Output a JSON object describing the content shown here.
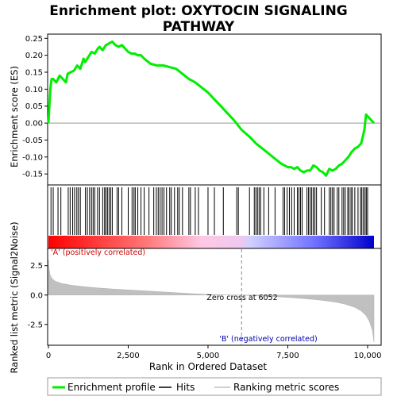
{
  "chart_data": [
    {
      "type": "line",
      "title": "Enrichment plot: OXYTOCIN SIGNALING PATHWAY",
      "title_lines": [
        "Enrichment plot: OXYTOCIN SIGNALING",
        "PATHWAY"
      ],
      "ylabel": "Enrichment score (ES)",
      "ylim": [
        -0.18,
        0.26
      ],
      "xlim": [
        0,
        10250
      ],
      "yticks": [
        -0.15,
        -0.1,
        -0.05,
        0.0,
        0.05,
        0.1,
        0.15,
        0.2,
        0.25
      ],
      "ytick_labels": [
        "-0.15",
        "-0.10",
        "-0.05",
        "0.00",
        "0.05",
        "0.10",
        "0.15",
        "0.20",
        "0.25"
      ],
      "line_color": "#00ee00",
      "x": [
        0,
        30,
        60,
        100,
        150,
        250,
        350,
        450,
        550,
        600,
        700,
        800,
        900,
        1000,
        1100,
        1150,
        1250,
        1350,
        1450,
        1550,
        1600,
        1700,
        1800,
        1900,
        2000,
        2100,
        2200,
        2300,
        2400,
        2500,
        2600,
        2700,
        2800,
        2900,
        3000,
        3200,
        3400,
        3600,
        3800,
        4000,
        4200,
        4400,
        4600,
        4800,
        5000,
        5200,
        5400,
        5600,
        5800,
        6052,
        6300,
        6500,
        6700,
        6900,
        7100,
        7300,
        7400,
        7500,
        7600,
        7700,
        7800,
        7900,
        8000,
        8100,
        8200,
        8300,
        8400,
        8500,
        8600,
        8700,
        8800,
        8900,
        9000,
        9100,
        9200,
        9300,
        9400,
        9500,
        9600,
        9700,
        9800,
        9850,
        9900,
        9950,
        10000,
        10100,
        10200
      ],
      "y": [
        0.0,
        0.05,
        0.1,
        0.13,
        0.13,
        0.12,
        0.14,
        0.13,
        0.12,
        0.145,
        0.15,
        0.155,
        0.17,
        0.16,
        0.19,
        0.18,
        0.195,
        0.21,
        0.205,
        0.22,
        0.225,
        0.215,
        0.23,
        0.235,
        0.24,
        0.23,
        0.225,
        0.23,
        0.22,
        0.21,
        0.205,
        0.205,
        0.2,
        0.2,
        0.19,
        0.175,
        0.17,
        0.17,
        0.165,
        0.16,
        0.145,
        0.13,
        0.12,
        0.105,
        0.09,
        0.07,
        0.05,
        0.03,
        0.01,
        -0.02,
        -0.04,
        -0.06,
        -0.075,
        -0.09,
        -0.105,
        -0.12,
        -0.125,
        -0.13,
        -0.13,
        -0.135,
        -0.13,
        -0.14,
        -0.145,
        -0.14,
        -0.14,
        -0.125,
        -0.13,
        -0.14,
        -0.145,
        -0.155,
        -0.135,
        -0.14,
        -0.135,
        -0.125,
        -0.12,
        -0.11,
        -0.1,
        -0.085,
        -0.075,
        -0.07,
        -0.06,
        -0.04,
        -0.02,
        0.025,
        0.02,
        0.01,
        0.0
      ]
    },
    {
      "type": "scatter",
      "series": [
        {
          "name": "Hits",
          "x": [
            80,
            150,
            300,
            390,
            620,
            680,
            760,
            820,
            890,
            940,
            1000,
            1160,
            1220,
            1290,
            1350,
            1400,
            1450,
            1540,
            1600,
            1700,
            1760,
            1800,
            1850,
            1900,
            1950,
            2000,
            2150,
            2200,
            2300,
            2500,
            2620,
            2680,
            2720,
            2800,
            2900,
            3000,
            3150,
            3300,
            3380,
            3440,
            3500,
            3560,
            3620,
            3700,
            3800,
            3850,
            3950,
            4050,
            4100,
            4200,
            4400,
            4450,
            4600,
            4700,
            5000,
            5200,
            5480,
            5900,
            5950,
            6300,
            6450,
            6500,
            6550,
            6600,
            6650,
            6750,
            6900,
            7100,
            7350,
            7400,
            7480,
            7550,
            7620,
            7700,
            7800,
            7850,
            7900,
            7950,
            8100,
            8150,
            8200,
            8250,
            8300,
            8350,
            8400,
            8550,
            8650,
            8800,
            8850,
            8900,
            8950,
            9050,
            9100,
            9200,
            9250,
            9300,
            9380,
            9420,
            9480,
            9520,
            9600,
            9700,
            9780,
            9820,
            9870,
            9920,
            9960,
            10000
          ]
        }
      ]
    },
    {
      "type": "area",
      "ylabel": "Ranked list metric (Signal2Noise)",
      "xlabel": "Rank in Ordered Dataset",
      "xlim": [
        0,
        10250
      ],
      "ylim": [
        -4.2,
        3.9
      ],
      "yticks": [
        -2.5,
        0.0,
        2.5
      ],
      "ytick_labels": [
        "-2.5",
        "0.0",
        "2.5"
      ],
      "xticks": [
        0,
        2500,
        5000,
        7500,
        10000
      ],
      "xtick_labels": [
        "0",
        "2,500",
        "5,000",
        "7,500",
        "10,000"
      ],
      "fill_color": "#c0c0c0",
      "x": [
        0,
        20,
        50,
        100,
        200,
        400,
        700,
        1000,
        1500,
        2000,
        2500,
        3000,
        3500,
        4000,
        4500,
        5000,
        5500,
        6052,
        6500,
        7000,
        7500,
        8000,
        8500,
        9000,
        9300,
        9600,
        9800,
        9950,
        10050,
        10150,
        10200
      ],
      "values": [
        3.0,
        2.2,
        1.75,
        1.45,
        1.2,
        1.0,
        0.85,
        0.75,
        0.62,
        0.52,
        0.44,
        0.36,
        0.28,
        0.2,
        0.12,
        0.06,
        0.02,
        0.0,
        -0.06,
        -0.12,
        -0.2,
        -0.3,
        -0.42,
        -0.6,
        -0.78,
        -1.05,
        -1.35,
        -1.75,
        -2.2,
        -3.0,
        -4.0
      ],
      "annotations": {
        "zero_cross_label": "Zero cross at 6052",
        "zero_cross_x": 6052,
        "pos_label": "'A' (positively correlated)",
        "neg_label": "'B' (negatively correlated)"
      }
    }
  ],
  "legend": {
    "items": [
      {
        "label": "Enrichment profile",
        "color": "#00ee00",
        "style": "thick-line"
      },
      {
        "label": "Hits",
        "color": "#000000",
        "style": "thin-line"
      },
      {
        "label": "Ranking metric scores",
        "color": "#c0c0c0",
        "style": "thin-line"
      }
    ]
  },
  "colors": {
    "positive": "#ff0000",
    "negative": "#0000ff",
    "neg_label": "#0000aa",
    "pos_label": "#cc0000"
  }
}
